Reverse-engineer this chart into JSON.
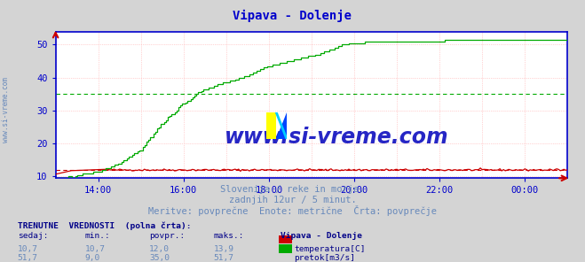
{
  "title": "Vipava - Dolenje",
  "title_color": "#0000cc",
  "bg_color": "#d4d4d4",
  "plot_bg_color": "#ffffff",
  "grid_color_v": "#ffaaaa",
  "grid_color_h": "#ffaaaa",
  "axis_color": "#0000cc",
  "tick_color": "#0000cc",
  "ylim": [
    9.5,
    54.0
  ],
  "xlim": [
    0,
    288
  ],
  "yticks": [
    10,
    20,
    30,
    40,
    50
  ],
  "temp_color": "#cc0000",
  "flow_color": "#00aa00",
  "temp_avg": 12.0,
  "flow_avg": 35.0,
  "watermark_text": "www.si-vreme.com",
  "watermark_color": "#0000bb",
  "subtitle1": "Slovenija / reke in morje.",
  "subtitle2": "zadnjih 12ur / 5 minut.",
  "subtitle3": "Meritve: povprečne  Enote: metrične  Črta: povprečje",
  "text_color": "#6688bb",
  "bold_text_color": "#000088",
  "left_label": "www.si-vreme.com",
  "left_label_color": "#6688bb",
  "xtick_positions": [
    24,
    72,
    120,
    168,
    216,
    264
  ],
  "xtick_labels": [
    "14:00",
    "16:00",
    "18:00",
    "20:00",
    "22:00",
    "00:00"
  ],
  "row_headers": [
    "sedaj:",
    "min.:",
    "povpr.:",
    "maks.:",
    "Vipava - Dolenje"
  ],
  "row1_vals": [
    "10,7",
    "10,7",
    "12,0",
    "13,9"
  ],
  "row2_vals": [
    "51,7",
    "9,0",
    "35,0",
    "51,7"
  ],
  "label_temp": "temperatura[C]",
  "label_flow": "pretok[m3/s]",
  "currently_label": "TRENUTNE  VREDNOSTI  (polna črta):"
}
